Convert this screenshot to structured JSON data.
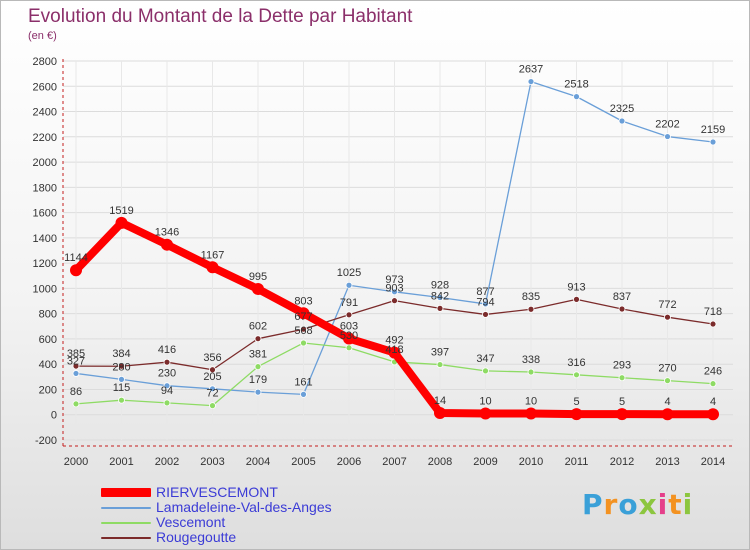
{
  "title": "Evolution du Montant de la Dette par Habitant",
  "subtitle": "(en €)",
  "logo": {
    "text": "Proxiti",
    "letters": [
      "P",
      "r",
      "o",
      "x",
      "i",
      "t",
      "i"
    ],
    "colors": [
      "#3aa0d8",
      "#f39221",
      "#3aa0d8",
      "#8cc63f",
      "#e53f8a",
      "#f39221",
      "#8cc63f"
    ]
  },
  "colors": {
    "axis": "#c41e1e",
    "grid": "#dcdcdc",
    "tick_text": "#333333"
  },
  "chart_data": {
    "type": "line",
    "title": "Evolution du Montant de la Dette par Habitant",
    "ylabel": "(en €)",
    "x": [
      "2000",
      "2001",
      "2002",
      "2003",
      "2004",
      "2005",
      "2006",
      "2007",
      "2008",
      "2009",
      "2010",
      "2011",
      "2012",
      "2013",
      "2014"
    ],
    "ylim": [
      -200,
      2800
    ],
    "yticks": [
      -200,
      0,
      200,
      400,
      600,
      800,
      1000,
      1200,
      1400,
      1600,
      1800,
      2000,
      2200,
      2400,
      2600,
      2800
    ],
    "grid": true,
    "legend_position": "bottom-left",
    "series": [
      {
        "name": "RIERVESCEMONT",
        "color": "#ff0000",
        "values": [
          1144,
          1519,
          1346,
          1167,
          995,
          803,
          603,
          492,
          14,
          10,
          10,
          5,
          5,
          4,
          4
        ]
      },
      {
        "name": "Lamadeleine-Val-des-Anges",
        "color": "#6a9fd8",
        "values": [
          327,
          280,
          230,
          205,
          179,
          161,
          1025,
          973,
          928,
          877,
          2637,
          2518,
          2325,
          2202,
          2159
        ]
      },
      {
        "name": "Vescemont",
        "color": "#8edb64",
        "values": [
          86,
          115,
          94,
          72,
          381,
          568,
          530,
          418,
          397,
          347,
          338,
          316,
          293,
          270,
          246
        ]
      },
      {
        "name": "Rougegoutte",
        "color": "#7b2b2b",
        "values": [
          385,
          384,
          416,
          356,
          602,
          677,
          791,
          903,
          842,
          794,
          835,
          913,
          837,
          772,
          718
        ]
      }
    ]
  }
}
